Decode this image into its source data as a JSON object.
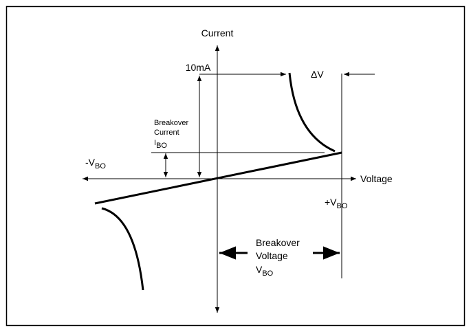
{
  "labels": {
    "current_axis": "Current",
    "voltage_axis": "Voltage",
    "test_current": "10mA",
    "delta_v": "ΔV",
    "breakover_current": {
      "line1": "Breakover",
      "line2": "Current",
      "symbol": "I",
      "subscript": "BO"
    },
    "negative_vbo": {
      "symbol": "-V",
      "subscript": "BO"
    },
    "positive_vbo": {
      "symbol": "+V",
      "subscript": "BO"
    },
    "breakover_voltage": {
      "line1": "Breakover",
      "line2": "Voltage",
      "symbol": "V",
      "subscript": "BO"
    }
  }
}
